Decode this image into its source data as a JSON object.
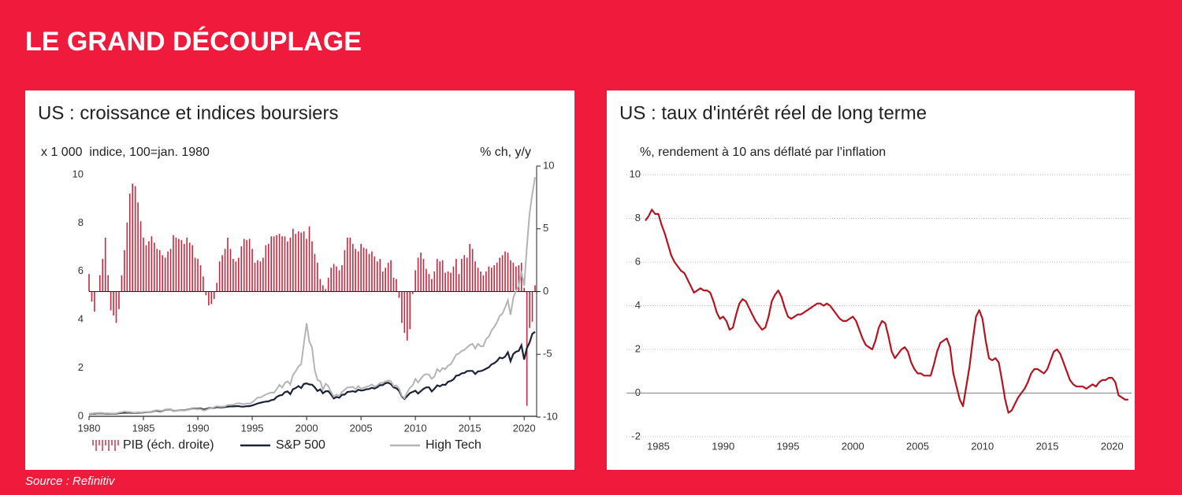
{
  "title": "LE GRAND DÉCOUPLAGE",
  "source": "Source : Refinitiv",
  "chart_data": [
    {
      "type": "combo",
      "title": "US : croissance et indices boursiers",
      "y_label": "x 1 000  indice, 100=jan. 1980",
      "y2_label": "% ch, y/y",
      "xlim": [
        1980,
        2021
      ],
      "xticks": [
        1980,
        1985,
        1990,
        1995,
        2000,
        2005,
        2010,
        2015,
        2020
      ],
      "ylim": [
        0,
        10
      ],
      "yticks": [
        0,
        2,
        4,
        6,
        8,
        10
      ],
      "y2lim": [
        -10,
        10
      ],
      "y2ticks": [
        10,
        5,
        0,
        -5,
        -10
      ],
      "legend": "bottom",
      "x": [
        1980,
        1980.25,
        1980.5,
        1980.75,
        1981,
        1981.25,
        1981.5,
        1981.75,
        1982,
        1982.25,
        1982.5,
        1982.75,
        1983,
        1983.25,
        1983.5,
        1983.75,
        1984,
        1984.25,
        1984.5,
        1984.75,
        1985,
        1985.25,
        1985.5,
        1985.75,
        1986,
        1986.25,
        1986.5,
        1986.75,
        1987,
        1987.25,
        1987.5,
        1987.75,
        1988,
        1988.25,
        1988.5,
        1988.75,
        1989,
        1989.25,
        1989.5,
        1989.75,
        1990,
        1990.25,
        1990.5,
        1990.75,
        1991,
        1991.25,
        1991.5,
        1991.75,
        1992,
        1992.25,
        1992.5,
        1992.75,
        1993,
        1993.25,
        1993.5,
        1993.75,
        1994,
        1994.25,
        1994.5,
        1994.75,
        1995,
        1995.25,
        1995.5,
        1995.75,
        1996,
        1996.25,
        1996.5,
        1996.75,
        1997,
        1997.25,
        1997.5,
        1997.75,
        1998,
        1998.25,
        1998.5,
        1998.75,
        1999,
        1999.25,
        1999.5,
        1999.75,
        2000,
        2000.25,
        2000.5,
        2000.75,
        2001,
        2001.25,
        2001.5,
        2001.75,
        2002,
        2002.25,
        2002.5,
        2002.75,
        2003,
        2003.25,
        2003.5,
        2003.75,
        2004,
        2004.25,
        2004.5,
        2004.75,
        2005,
        2005.25,
        2005.5,
        2005.75,
        2006,
        2006.25,
        2006.5,
        2006.75,
        2007,
        2007.25,
        2007.5,
        2007.75,
        2008,
        2008.25,
        2008.5,
        2008.75,
        2009,
        2009.25,
        2009.5,
        2009.75,
        2010,
        2010.25,
        2010.5,
        2010.75,
        2011,
        2011.25,
        2011.5,
        2011.75,
        2012,
        2012.25,
        2012.5,
        2012.75,
        2013,
        2013.25,
        2013.5,
        2013.75,
        2014,
        2014.25,
        2014.5,
        2014.75,
        2015,
        2015.25,
        2015.5,
        2015.75,
        2016,
        2016.25,
        2016.5,
        2016.75,
        2017,
        2017.25,
        2017.5,
        2017.75,
        2018,
        2018.25,
        2018.5,
        2018.75,
        2019,
        2019.25,
        2019.5,
        2019.75,
        2020,
        2020.25,
        2020.5,
        2020.75,
        2021
      ],
      "series": [
        {
          "name": "PIB (éch. droite)",
          "kind": "bar",
          "axis": "y2",
          "color": "#c8283e",
          "values": [
            1.4,
            -0.8,
            -1.6,
            0,
            1.3,
            2.6,
            4.3,
            1.3,
            -1.5,
            -1.9,
            -2.5,
            -1.4,
            1.3,
            3.3,
            5.5,
            7.8,
            8.6,
            8.4,
            7.1,
            5.6,
            4.3,
            3.7,
            4.0,
            4.4,
            3.9,
            3.4,
            3.3,
            2.9,
            2.7,
            3.2,
            3.4,
            4.5,
            4.3,
            4.2,
            4.1,
            3.8,
            4.3,
            3.9,
            3.7,
            2.7,
            2.6,
            2.1,
            1.2,
            -0.3,
            -1.1,
            -1.0,
            -0.6,
            0.7,
            2.4,
            2.9,
            3.4,
            4.3,
            3.4,
            2.6,
            2.4,
            2.7,
            3.6,
            4.2,
            4.1,
            4.2,
            3.4,
            2.3,
            2.5,
            2.4,
            2.7,
            3.7,
            3.8,
            4.4,
            4.4,
            4.5,
            4.6,
            4.4,
            4.4,
            4.0,
            4.3,
            5.0,
            4.6,
            4.8,
            4.7,
            4.8,
            4.2,
            5.2,
            4.0,
            3.0,
            2.3,
            1.0,
            0.5,
            0.2,
            1.1,
            1.9,
            2.2,
            2.0,
            1.7,
            2.1,
            3.3,
            4.3,
            4.3,
            3.8,
            3.4,
            3.2,
            3.8,
            3.5,
            3.4,
            3.0,
            3.2,
            2.8,
            2.4,
            2.6,
            1.6,
            1.9,
            2.3,
            2.5,
            1.1,
            1.0,
            -0.5,
            -2.5,
            -3.3,
            -3.9,
            -3.0,
            -0.2,
            1.7,
            2.7,
            3.1,
            2.6,
            1.8,
            1.4,
            1.0,
            1.6,
            2.6,
            2.4,
            2.5,
            1.5,
            1.6,
            1.5,
            2.0,
            2.6,
            1.4,
            2.6,
            2.9,
            2.7,
            3.8,
            3.4,
            2.4,
            1.9,
            1.6,
            1.3,
            1.6,
            2.0,
            1.9,
            2.1,
            2.3,
            2.7,
            2.9,
            3.2,
            3.1,
            2.5,
            2.3,
            2.0,
            2.1,
            2.3,
            0.3,
            -9.1,
            -2.9,
            -2.4,
            0.5
          ]
        },
        {
          "name": "S&P 500",
          "kind": "line",
          "color": "#1b2236",
          "values": [
            0.09,
            0.1,
            0.11,
            0.12,
            0.12,
            0.12,
            0.11,
            0.11,
            0.1,
            0.1,
            0.11,
            0.13,
            0.14,
            0.15,
            0.15,
            0.15,
            0.14,
            0.14,
            0.15,
            0.15,
            0.16,
            0.17,
            0.17,
            0.19,
            0.22,
            0.23,
            0.21,
            0.22,
            0.27,
            0.28,
            0.29,
            0.22,
            0.23,
            0.25,
            0.25,
            0.25,
            0.27,
            0.29,
            0.32,
            0.32,
            0.31,
            0.33,
            0.28,
            0.3,
            0.34,
            0.34,
            0.35,
            0.38,
            0.37,
            0.37,
            0.38,
            0.4,
            0.41,
            0.41,
            0.42,
            0.42,
            0.4,
            0.4,
            0.42,
            0.42,
            0.45,
            0.49,
            0.53,
            0.56,
            0.59,
            0.61,
            0.62,
            0.67,
            0.69,
            0.8,
            0.86,
            0.88,
            1.0,
            1.03,
            0.92,
            1.12,
            1.17,
            1.25,
            1.17,
            1.34,
            1.36,
            1.32,
            1.31,
            1.2,
            1.05,
            1.11,
            0.95,
            1.04,
            1.04,
            0.9,
            0.74,
            0.8,
            0.77,
            0.89,
            0.9,
            1.01,
            1.02,
            1.04,
            1.01,
            1.1,
            1.07,
            1.08,
            1.12,
            1.13,
            1.18,
            1.15,
            1.21,
            1.29,
            1.29,
            1.37,
            1.39,
            1.33,
            1.2,
            1.16,
            1.06,
            0.82,
            0.72,
            0.84,
            0.96,
            1.01,
            1.06,
            0.94,
            1.04,
            1.14,
            1.2,
            1.2,
            1.03,
            1.14,
            1.28,
            1.24,
            1.31,
            1.3,
            1.43,
            1.46,
            1.53,
            1.68,
            1.7,
            1.78,
            1.79,
            1.87,
            1.88,
            1.88,
            1.75,
            1.86,
            1.87,
            1.91,
            1.97,
            2.03,
            2.15,
            2.2,
            2.29,
            2.43,
            2.4,
            2.47,
            2.65,
            2.28,
            2.58,
            2.67,
            2.71,
            2.94,
            2.35,
            2.82,
            3.06,
            3.41,
            3.5
          ]
        },
        {
          "name": "High Tech",
          "kind": "line",
          "color": "#b4b4b4",
          "values": [
            0.1,
            0.11,
            0.13,
            0.14,
            0.14,
            0.14,
            0.12,
            0.13,
            0.11,
            0.11,
            0.12,
            0.15,
            0.17,
            0.2,
            0.18,
            0.18,
            0.16,
            0.15,
            0.17,
            0.16,
            0.17,
            0.18,
            0.17,
            0.2,
            0.23,
            0.25,
            0.23,
            0.23,
            0.28,
            0.29,
            0.3,
            0.21,
            0.23,
            0.25,
            0.24,
            0.24,
            0.26,
            0.28,
            0.31,
            0.3,
            0.29,
            0.3,
            0.24,
            0.26,
            0.32,
            0.33,
            0.37,
            0.42,
            0.4,
            0.4,
            0.41,
            0.47,
            0.47,
            0.48,
            0.52,
            0.54,
            0.52,
            0.5,
            0.53,
            0.52,
            0.58,
            0.67,
            0.78,
            0.78,
            0.84,
            0.9,
            0.95,
            0.98,
            0.98,
            1.12,
            1.3,
            1.19,
            1.38,
            1.45,
            1.32,
            1.71,
            1.87,
            2.06,
            2.16,
            3.0,
            3.85,
            3.1,
            2.85,
            1.9,
            1.5,
            1.45,
            1.1,
            1.35,
            1.25,
            1.0,
            0.82,
            0.9,
            0.85,
            1.0,
            1.1,
            1.2,
            1.2,
            1.22,
            1.12,
            1.25,
            1.15,
            1.18,
            1.22,
            1.25,
            1.32,
            1.22,
            1.28,
            1.38,
            1.38,
            1.45,
            1.48,
            1.45,
            1.25,
            1.28,
            1.15,
            0.85,
            0.75,
            1.0,
            1.18,
            1.28,
            1.55,
            1.4,
            1.55,
            1.7,
            1.75,
            1.72,
            1.55,
            1.65,
            1.95,
            1.85,
            2.0,
            1.95,
            2.1,
            2.15,
            2.35,
            2.55,
            2.6,
            2.7,
            2.75,
            2.85,
            2.95,
            3.0,
            2.8,
            3.0,
            2.9,
            2.9,
            3.2,
            3.3,
            3.55,
            3.7,
            3.9,
            4.15,
            4.25,
            4.5,
            4.8,
            4.2,
            4.9,
            5.2,
            5.4,
            6.0,
            5.4,
            7.0,
            8.4,
            9.2,
            9.9
          ]
        }
      ]
    },
    {
      "type": "line",
      "title": "US : taux d'intérêt réel de long terme",
      "y_label": "%, rendement à 10 ans déflaté par l’inflation",
      "xlim": [
        1984,
        2021.5
      ],
      "xticks": [
        1985,
        1990,
        1995,
        2000,
        2005,
        2010,
        2015,
        2020
      ],
      "ylim": [
        -2,
        10
      ],
      "yticks": [
        -2,
        0,
        2,
        4,
        6,
        8,
        10
      ],
      "grid": true,
      "x": [
        1984,
        1984.25,
        1984.5,
        1984.75,
        1985,
        1985.25,
        1985.5,
        1985.75,
        1986,
        1986.25,
        1986.5,
        1986.75,
        1987,
        1987.25,
        1987.5,
        1987.75,
        1988,
        1988.25,
        1988.5,
        1988.75,
        1989,
        1989.25,
        1989.5,
        1989.75,
        1990,
        1990.25,
        1990.5,
        1990.75,
        1991,
        1991.25,
        1991.5,
        1991.75,
        1992,
        1992.25,
        1992.5,
        1992.75,
        1993,
        1993.25,
        1993.5,
        1993.75,
        1994,
        1994.25,
        1994.5,
        1994.75,
        1995,
        1995.25,
        1995.5,
        1995.75,
        1996,
        1996.25,
        1996.5,
        1996.75,
        1997,
        1997.25,
        1997.5,
        1997.75,
        1998,
        1998.25,
        1998.5,
        1998.75,
        1999,
        1999.25,
        1999.5,
        1999.75,
        2000,
        2000.25,
        2000.5,
        2000.75,
        2001,
        2001.25,
        2001.5,
        2001.75,
        2002,
        2002.25,
        2002.5,
        2002.75,
        2003,
        2003.25,
        2003.5,
        2003.75,
        2004,
        2004.25,
        2004.5,
        2004.75,
        2005,
        2005.25,
        2005.5,
        2005.75,
        2006,
        2006.25,
        2006.5,
        2006.75,
        2007,
        2007.25,
        2007.5,
        2007.75,
        2008,
        2008.25,
        2008.5,
        2008.75,
        2009,
        2009.25,
        2009.5,
        2009.75,
        2010,
        2010.25,
        2010.5,
        2010.75,
        2011,
        2011.25,
        2011.5,
        2011.75,
        2012,
        2012.25,
        2012.5,
        2012.75,
        2013,
        2013.25,
        2013.5,
        2013.75,
        2014,
        2014.25,
        2014.5,
        2014.75,
        2015,
        2015.25,
        2015.5,
        2015.75,
        2016,
        2016.25,
        2016.5,
        2016.75,
        2017,
        2017.25,
        2017.5,
        2017.75,
        2018,
        2018.25,
        2018.5,
        2018.75,
        2019,
        2019.25,
        2019.5,
        2019.75,
        2020,
        2020.25,
        2020.5,
        2020.75,
        2021,
        2021.25
      ],
      "series": [
        {
          "color": "#b3141f",
          "values": [
            7.9,
            8.1,
            8.4,
            8.2,
            8.2,
            7.7,
            7.3,
            6.8,
            6.3,
            6.0,
            5.8,
            5.6,
            5.5,
            5.2,
            4.9,
            4.6,
            4.7,
            4.8,
            4.7,
            4.7,
            4.6,
            4.2,
            3.7,
            3.4,
            3.5,
            3.3,
            2.9,
            3.0,
            3.6,
            4.1,
            4.3,
            4.2,
            3.9,
            3.6,
            3.3,
            3.1,
            2.9,
            3.0,
            3.5,
            4.2,
            4.5,
            4.7,
            4.4,
            3.9,
            3.5,
            3.4,
            3.5,
            3.6,
            3.6,
            3.7,
            3.8,
            3.9,
            4.0,
            4.1,
            4.1,
            4.0,
            4.1,
            4.0,
            3.8,
            3.6,
            3.4,
            3.3,
            3.3,
            3.4,
            3.5,
            3.3,
            2.9,
            2.5,
            2.2,
            2.1,
            2.0,
            2.4,
            3.0,
            3.3,
            3.2,
            2.6,
            1.9,
            1.6,
            1.8,
            2.0,
            2.1,
            1.9,
            1.4,
            1.1,
            0.9,
            0.9,
            0.8,
            0.8,
            0.8,
            1.3,
            1.9,
            2.3,
            2.4,
            2.5,
            2.1,
            0.9,
            0.3,
            -0.3,
            -0.6,
            0.3,
            1.2,
            2.4,
            3.5,
            3.8,
            3.4,
            2.4,
            1.6,
            1.5,
            1.6,
            1.4,
            0.6,
            -0.3,
            -0.9,
            -0.8,
            -0.5,
            -0.2,
            0.0,
            0.2,
            0.5,
            0.9,
            1.1,
            1.1,
            1.0,
            0.9,
            1.1,
            1.5,
            1.9,
            2.0,
            1.8,
            1.4,
            1.0,
            0.6,
            0.4,
            0.3,
            0.3,
            0.3,
            0.2,
            0.3,
            0.4,
            0.3,
            0.5,
            0.6,
            0.6,
            0.7,
            0.7,
            0.5,
            -0.1,
            -0.2,
            -0.3,
            -0.3
          ]
        }
      ]
    }
  ]
}
